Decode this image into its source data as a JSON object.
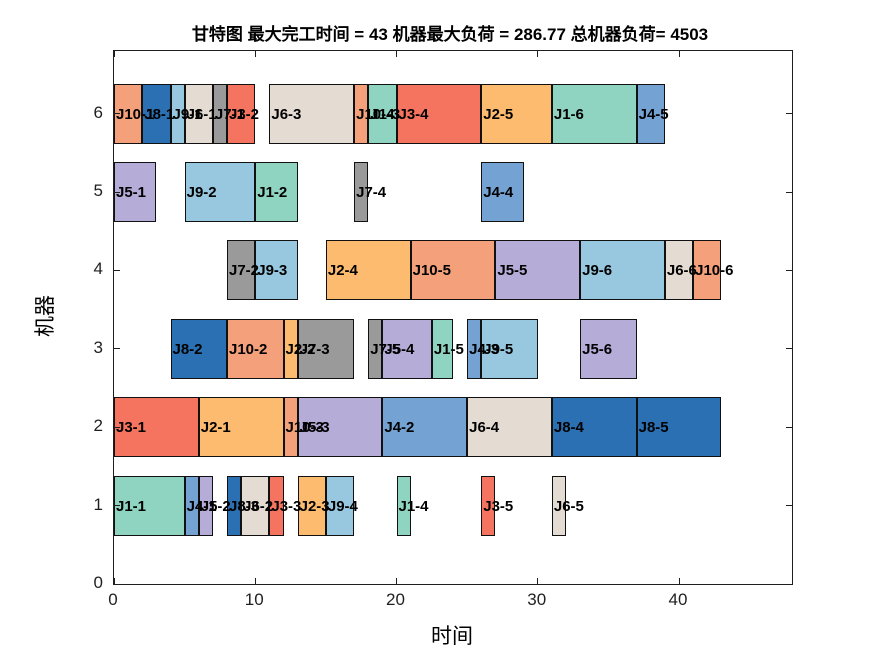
{
  "title": "甘特图 最大完工时间 = 43 机器最大负荷 = 286.77 总机器负荷= 4503",
  "chart_data": {
    "type": "gantt",
    "title": "甘特图 最大完工时间 = 43 机器最大负荷 = 286.77 总机器负荷= 4503",
    "xlabel": "时间",
    "ylabel": "机器",
    "xlim": [
      0,
      48
    ],
    "ylim": [
      0,
      6.8
    ],
    "xticks": [
      "0",
      "10",
      "20",
      "30",
      "40"
    ],
    "xtick_values": [
      0,
      10,
      20,
      30,
      40
    ],
    "yticks": [
      "0",
      "1",
      "2",
      "3",
      "4",
      "5",
      "6"
    ],
    "ytick_values": [
      0,
      1,
      2,
      3,
      4,
      5,
      6
    ],
    "grid": false,
    "legend": null,
    "bar_height_units": 0.77,
    "bar_edge_color": "#111111",
    "stats": {
      "makespan": 43,
      "max_machine_load": 286.77,
      "total_machine_load": 4503
    },
    "job_colors": {
      "J1": "#8FD4C0",
      "J2": "#FCBB6E",
      "J3": "#F5745F",
      "J4": "#74A3D3",
      "J5": "#B6ACD8",
      "J6": "#E4DBD2",
      "J7": "#9A9A9A",
      "J8": "#2B70B2",
      "J9": "#97C8DF",
      "J10": "#F3A07B"
    },
    "tasks": [
      {
        "machine": 6,
        "label": "J10-1",
        "start": 0,
        "end": 2
      },
      {
        "machine": 6,
        "label": "J8-1",
        "start": 2,
        "end": 4
      },
      {
        "machine": 6,
        "label": "J9-1",
        "start": 4,
        "end": 5
      },
      {
        "machine": 6,
        "label": "J6-1",
        "start": 5,
        "end": 7
      },
      {
        "machine": 6,
        "label": "J7-1",
        "start": 7,
        "end": 8
      },
      {
        "machine": 6,
        "label": "J3-2",
        "start": 8,
        "end": 10
      },
      {
        "machine": 6,
        "label": "J6-3",
        "start": 11,
        "end": 17
      },
      {
        "machine": 6,
        "label": "J10-4",
        "start": 17,
        "end": 18
      },
      {
        "machine": 6,
        "label": "J1-3",
        "start": 18,
        "end": 20
      },
      {
        "machine": 6,
        "label": "J3-4",
        "start": 20,
        "end": 26
      },
      {
        "machine": 6,
        "label": "J2-5",
        "start": 26,
        "end": 31
      },
      {
        "machine": 6,
        "label": "J1-6",
        "start": 31,
        "end": 37
      },
      {
        "machine": 6,
        "label": "J4-5",
        "start": 37,
        "end": 39
      },
      {
        "machine": 5,
        "label": "J5-1",
        "start": 0,
        "end": 3
      },
      {
        "machine": 5,
        "label": "J9-2",
        "start": 5,
        "end": 10
      },
      {
        "machine": 5,
        "label": "J1-2",
        "start": 10,
        "end": 13
      },
      {
        "machine": 5,
        "label": "J7-4",
        "start": 17,
        "end": 18
      },
      {
        "machine": 5,
        "label": "J4-4",
        "start": 26,
        "end": 29
      },
      {
        "machine": 4,
        "label": "J7-2",
        "start": 8,
        "end": 10
      },
      {
        "machine": 4,
        "label": "J9-3",
        "start": 10,
        "end": 13
      },
      {
        "machine": 4,
        "label": "J2-4",
        "start": 15,
        "end": 21
      },
      {
        "machine": 4,
        "label": "J10-5",
        "start": 21,
        "end": 27
      },
      {
        "machine": 4,
        "label": "J5-5",
        "start": 27,
        "end": 33
      },
      {
        "machine": 4,
        "label": "J9-6",
        "start": 33,
        "end": 39
      },
      {
        "machine": 4,
        "label": "J6-6",
        "start": 39,
        "end": 41
      },
      {
        "machine": 4,
        "label": "J10-6",
        "start": 41,
        "end": 43
      },
      {
        "machine": 3,
        "label": "J8-2",
        "start": 4,
        "end": 8
      },
      {
        "machine": 3,
        "label": "J10-2",
        "start": 8,
        "end": 12
      },
      {
        "machine": 3,
        "label": "J2-2",
        "start": 12,
        "end": 13
      },
      {
        "machine": 3,
        "label": "J7-3",
        "start": 13,
        "end": 17
      },
      {
        "machine": 3,
        "label": "J7-5",
        "start": 18,
        "end": 19
      },
      {
        "machine": 3,
        "label": "J5-4",
        "start": 19,
        "end": 22.5
      },
      {
        "machine": 3,
        "label": "J1-5",
        "start": 22.5,
        "end": 24
      },
      {
        "machine": 3,
        "label": "J4-3",
        "start": 25,
        "end": 26
      },
      {
        "machine": 3,
        "label": "J9-5",
        "start": 26,
        "end": 30
      },
      {
        "machine": 3,
        "label": "J5-6",
        "start": 33,
        "end": 37
      },
      {
        "machine": 2,
        "label": "J3-1",
        "start": 0,
        "end": 6
      },
      {
        "machine": 2,
        "label": "J2-1",
        "start": 6,
        "end": 12
      },
      {
        "machine": 2,
        "label": "J10-3",
        "start": 12,
        "end": 13
      },
      {
        "machine": 2,
        "label": "J5-3",
        "start": 13,
        "end": 19
      },
      {
        "machine": 2,
        "label": "J4-2",
        "start": 19,
        "end": 25
      },
      {
        "machine": 2,
        "label": "J6-4",
        "start": 25,
        "end": 31
      },
      {
        "machine": 2,
        "label": "J8-4",
        "start": 31,
        "end": 37
      },
      {
        "machine": 2,
        "label": "J8-5",
        "start": 37,
        "end": 43
      },
      {
        "machine": 1,
        "label": "J1-1",
        "start": 0,
        "end": 5
      },
      {
        "machine": 1,
        "label": "J4-1",
        "start": 5,
        "end": 6
      },
      {
        "machine": 1,
        "label": "J5-2",
        "start": 6,
        "end": 7
      },
      {
        "machine": 1,
        "label": "J8-3",
        "start": 8,
        "end": 9
      },
      {
        "machine": 1,
        "label": "J6-2",
        "start": 9,
        "end": 11
      },
      {
        "machine": 1,
        "label": "J3-3",
        "start": 11,
        "end": 12
      },
      {
        "machine": 1,
        "label": "J2-3",
        "start": 13,
        "end": 15
      },
      {
        "machine": 1,
        "label": "J9-4",
        "start": 15,
        "end": 17
      },
      {
        "machine": 1,
        "label": "J1-4",
        "start": 20,
        "end": 21
      },
      {
        "machine": 1,
        "label": "J3-5",
        "start": 26,
        "end": 27
      },
      {
        "machine": 1,
        "label": "J6-5",
        "start": 31,
        "end": 32
      }
    ]
  }
}
